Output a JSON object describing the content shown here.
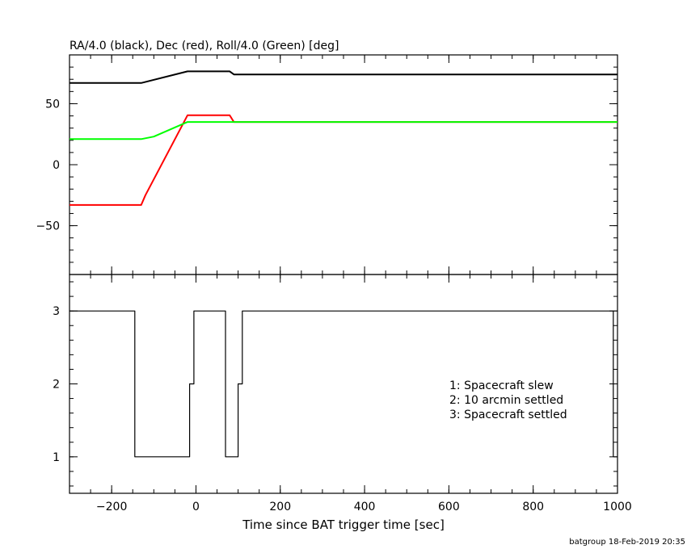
{
  "footer": "batgroup 18-Feb-2019 20:35",
  "chart_data": [
    {
      "type": "line",
      "title": "RA/4.0 (black), Dec (red), Roll/4.0 (Green) [deg]",
      "xlim": [
        -300,
        1000
      ],
      "ylim": [
        -90,
        90
      ],
      "yticks": [
        -50,
        0,
        50
      ],
      "ytick_labels": [
        "−50",
        "0",
        "50"
      ],
      "series": [
        {
          "color": "#000000",
          "x": [
            -300,
            -130,
            -20,
            80,
            90,
            1000
          ],
          "y": [
            67,
            67,
            76.5,
            76.5,
            74,
            74
          ]
        },
        {
          "color": "#ff0000",
          "x": [
            -300,
            -130,
            -120,
            -20,
            80,
            90,
            1000
          ],
          "y": [
            -33,
            -33,
            -25,
            40.5,
            40.5,
            35,
            35
          ]
        },
        {
          "color": "#00ff00",
          "x": [
            -300,
            -130,
            -100,
            -20,
            80,
            1000
          ],
          "y": [
            21,
            21,
            23,
            35,
            35,
            35
          ]
        }
      ]
    },
    {
      "type": "line",
      "xlabel": "Time since BAT trigger time [sec]",
      "xlim": [
        -300,
        1000
      ],
      "ylim": [
        0.5,
        3.5
      ],
      "xticks": [
        -200,
        0,
        200,
        400,
        600,
        800,
        1000
      ],
      "xtick_labels": [
        "−200",
        "0",
        "200",
        "400",
        "600",
        "800",
        "1000"
      ],
      "yticks": [
        1,
        2,
        3
      ],
      "ytick_labels": [
        "1",
        "2",
        "3"
      ],
      "legend": [
        "1: Spacecraft slew",
        "2: 10 arcmin settled",
        "3: Spacecraft settled"
      ],
      "series": [
        {
          "color": "#000000",
          "x": [
            -300,
            -145,
            -145,
            -15,
            -15,
            -5,
            -5,
            70,
            70,
            100,
            100,
            110,
            110,
            990,
            990
          ],
          "y": [
            3,
            3,
            1,
            1,
            2,
            2,
            3,
            3,
            1,
            1,
            2,
            2,
            3,
            3,
            1
          ]
        }
      ]
    }
  ]
}
